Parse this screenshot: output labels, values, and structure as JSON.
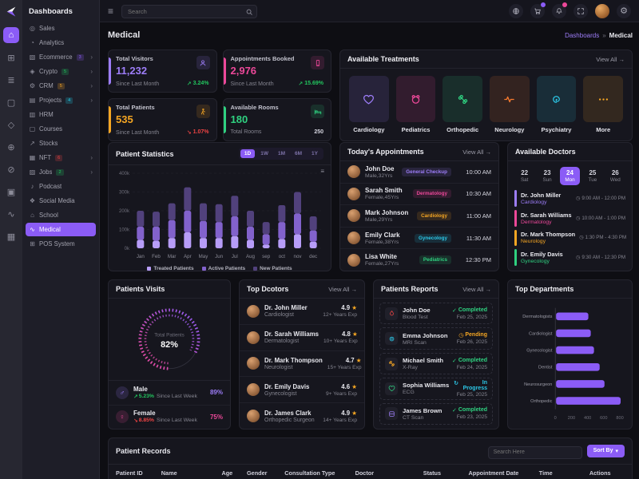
{
  "sidebar": {
    "title": "Dashboards",
    "items": [
      {
        "label": "Sales",
        "icon": "sales"
      },
      {
        "label": "Analytics",
        "icon": "analytics"
      },
      {
        "label": "Ecommerce",
        "icon": "ecommerce",
        "badge": "3",
        "badge_color": "#8b5cf6",
        "arrow": true
      },
      {
        "label": "Crypto",
        "icon": "crypto",
        "badge": "5",
        "badge_color": "#22c55e",
        "arrow": true
      },
      {
        "label": "CRM",
        "icon": "crm",
        "badge": "5",
        "badge_color": "#f5a623",
        "arrow": true
      },
      {
        "label": "Projects",
        "icon": "projects",
        "badge": "4",
        "badge_color": "#22d3ee",
        "arrow": true
      },
      {
        "label": "HRM",
        "icon": "hrm"
      },
      {
        "label": "Courses",
        "icon": "courses"
      },
      {
        "label": "Stocks",
        "icon": "stocks"
      },
      {
        "label": "NFT",
        "icon": "nft",
        "badge": "6",
        "badge_color": "#ef4444",
        "arrow": true
      },
      {
        "label": "Jobs",
        "icon": "jobs",
        "badge": "2",
        "badge_color": "#22c55e",
        "arrow": true
      },
      {
        "label": "Podcast",
        "icon": "podcast"
      },
      {
        "label": "Social Media",
        "icon": "social"
      },
      {
        "label": "School",
        "icon": "school"
      },
      {
        "label": "Medical",
        "icon": "medical",
        "active": true
      },
      {
        "label": "POS System",
        "icon": "pos"
      }
    ]
  },
  "rail": {
    "items": [
      {
        "icon": "home",
        "active": true
      },
      {
        "icon": "grid"
      },
      {
        "icon": "layers"
      },
      {
        "icon": "file"
      },
      {
        "icon": "diamond"
      },
      {
        "icon": "globe"
      },
      {
        "icon": "ban"
      },
      {
        "icon": "frame"
      },
      {
        "icon": "chart"
      },
      {
        "icon": "table"
      }
    ]
  },
  "topbar": {
    "search_placeholder": "Search"
  },
  "header": {
    "title": "Medical",
    "breadcrumb_parent": "Dashboards",
    "separator": "»",
    "breadcrumb_current": "Medical"
  },
  "stats": [
    {
      "title": "Total Visitors",
      "value": "11,232",
      "sub": "Since Last Month",
      "trend": "3.24%",
      "trend_dir": "up",
      "color": "#9d7df8",
      "icon": "person"
    },
    {
      "title": "Appointments Booked",
      "value": "2,976",
      "sub": "Since Last Month",
      "trend": "15.69%",
      "trend_dir": "up",
      "color": "#ec4899",
      "icon": "phone"
    },
    {
      "title": "Total Patients",
      "value": "535",
      "sub": "Since Last Month",
      "trend": "1.07%",
      "trend_dir": "down",
      "color": "#f5a623",
      "icon": "walk"
    },
    {
      "title": "Available Rooms",
      "value": "180",
      "sub": "Total Rooms",
      "trend": "250",
      "trend_dir": "none",
      "color": "#2fd180",
      "icon": "bed"
    }
  ],
  "treatments": {
    "title": "Available Treatments",
    "view_all": "View All →",
    "items": [
      {
        "label": "Cardiology",
        "color": "#9d7df8",
        "icon": "heart"
      },
      {
        "label": "Pediatrics",
        "color": "#ec4899",
        "icon": "teddy"
      },
      {
        "label": "Orthopedic",
        "color": "#2fd180",
        "icon": "bone"
      },
      {
        "label": "Neurology",
        "color": "#f97b2f",
        "icon": "pulse"
      },
      {
        "label": "Psychiatry",
        "color": "#2cc8e8",
        "icon": "spiral"
      },
      {
        "label": "More",
        "color": "#f5a623",
        "icon": "dots"
      }
    ]
  },
  "patient_statistics": {
    "title": "Patient Statistics",
    "ranges": [
      "1D",
      "1W",
      "1M",
      "6M",
      "1Y"
    ],
    "active_range": "1D"
  },
  "appointments": {
    "title": "Today's Appointments",
    "view_all": "View All →",
    "items": [
      {
        "name": "John Doe",
        "meta": "Male,32Yrs",
        "badge": "General Checkup",
        "badge_color": "#9d7df8",
        "time": "10:00 AM"
      },
      {
        "name": "Sarah Smith",
        "meta": "Female,45Yrs",
        "badge": "Dermatology",
        "badge_color": "#ec4899",
        "time": "10:30 AM"
      },
      {
        "name": "Mark Johnson",
        "meta": "Male,29Yrs",
        "badge": "Cardiology",
        "badge_color": "#f5a623",
        "time": "11:00 AM"
      },
      {
        "name": "Emily Clark",
        "meta": "Female,38Yrs",
        "badge": "Gynecology",
        "badge_color": "#2cc8e8",
        "time": "11:30 AM"
      },
      {
        "name": "Lisa White",
        "meta": "Female,27Yrs",
        "badge": "Pediatrics",
        "badge_color": "#2fd180",
        "time": "12:30 PM"
      }
    ]
  },
  "available_doctors": {
    "title": "Available Doctors",
    "days": [
      {
        "num": "22",
        "label": "Sat"
      },
      {
        "num": "23",
        "label": "Sun"
      },
      {
        "num": "24",
        "label": "Mon",
        "active": true
      },
      {
        "num": "25",
        "label": "Tue"
      },
      {
        "num": "26",
        "label": "Wed"
      }
    ],
    "doctors": [
      {
        "name": "Dr. John Miller",
        "dept": "Cardiology",
        "time": "9:00 AM - 12:00 PM",
        "color": "#9d7df8"
      },
      {
        "name": "Dr. Sarah Williams",
        "dept": "Dermatology",
        "time": "10:00 AM - 1:00 PM",
        "color": "#ec4899"
      },
      {
        "name": "Dr. Mark Thompson",
        "dept": "Neurology",
        "time": "1:30 PM - 4:30 PM",
        "color": "#f5a623"
      },
      {
        "name": "Dr. Emily Davis",
        "dept": "Gynecology",
        "time": "9:30 AM - 12:30 PM",
        "color": "#2fd180"
      }
    ]
  },
  "patients_visits": {
    "title": "Patients Visits",
    "gauge_label": "Total Patients",
    "gauge_value": "82%",
    "rows": [
      {
        "label": "Male",
        "trend": "5.23%",
        "trend_dir": "up",
        "sub": "Since Last Week",
        "pct": "89%",
        "color": "#9d7df8",
        "icon": "male"
      },
      {
        "label": "Female",
        "trend": "8.85%",
        "trend_dir": "down",
        "sub": "Since Last Week",
        "pct": "75%",
        "color": "#ec4899",
        "icon": "female"
      }
    ]
  },
  "top_doctors": {
    "title": "Top Dcotors",
    "view_all": "View All →",
    "items": [
      {
        "name": "Dr. John Miller",
        "spec": "Cardiologist",
        "rating": "4.9",
        "exp": "12+ Years Exp"
      },
      {
        "name": "Dr. Sarah Williams",
        "spec": "Dermatologist",
        "rating": "4.8",
        "exp": "10+ Years Exp"
      },
      {
        "name": "Dr. Mark Thompson",
        "spec": "Neurologist",
        "rating": "4.7",
        "exp": "15+ Years Exp"
      },
      {
        "name": "Dr. Emily Davis",
        "spec": "Gynecologist",
        "rating": "4.6",
        "exp": "9+ Years Exp"
      },
      {
        "name": "Dr. James Clark",
        "spec": "Orthopedic Surgeon",
        "rating": "4.9",
        "exp": "14+ Years Exp"
      }
    ]
  },
  "patients_reports": {
    "title": "Patients Reports",
    "view_all": "View All →",
    "items": [
      {
        "name": "John Doe",
        "test": "Blood Test",
        "status": "Completed",
        "date": "Feb 25, 2025",
        "status_color": "#2fd180",
        "icon_color": "#ef4444",
        "icon": "drop"
      },
      {
        "name": "Emma Johnson",
        "test": "MRI Scan",
        "status": "Pending",
        "date": "Feb 26, 2025",
        "status_color": "#f5a623",
        "icon_color": "#2cc8e8",
        "icon": "brain"
      },
      {
        "name": "Michael Smith",
        "test": "X-Ray",
        "status": "Completed",
        "date": "Feb 24, 2025",
        "status_color": "#2fd180",
        "icon_color": "#f5a623",
        "icon": "bone"
      },
      {
        "name": "Sophia Williams",
        "test": "ECG",
        "status": "In Progress",
        "date": "Feb 25, 2025",
        "status_color": "#2cc8e8",
        "icon_color": "#2fd180",
        "icon": "heart"
      },
      {
        "name": "James Brown",
        "test": "CT Scan",
        "status": "Completed",
        "date": "Feb 23, 2025",
        "status_color": "#2fd180",
        "icon_color": "#9d7df8",
        "icon": "scan"
      }
    ]
  },
  "top_departments": {
    "title": "Top Departments"
  },
  "patient_records": {
    "title": "Patient Records",
    "search_placeholder": "Search Here",
    "sort_label": "Sort By",
    "columns": [
      "Patient ID",
      "Name",
      "Age",
      "Gender",
      "Consultation Type",
      "Doctor",
      "Status",
      "Appointment Date",
      "Time",
      "Actions"
    ]
  },
  "chart_data": [
    {
      "id": "patient_statistics",
      "type": "bar",
      "stacked": true,
      "categories": [
        "Jan",
        "Feb",
        "Mar",
        "Apr",
        "May",
        "Jun",
        "Jul",
        "Aug",
        "sep",
        "oct",
        "nov",
        "dec"
      ],
      "series": [
        {
          "name": "Treated Patients",
          "color": "#b79df8",
          "values": [
            45,
            40,
            55,
            85,
            55,
            55,
            65,
            45,
            20,
            50,
            75,
            35
          ]
        },
        {
          "name": "Active Patients",
          "color": "#8262cc",
          "values": [
            70,
            75,
            95,
            115,
            90,
            85,
            105,
            70,
            55,
            90,
            110,
            60
          ]
        },
        {
          "name": "New Patients",
          "color": "#51417c",
          "values": [
            85,
            80,
            90,
            125,
            95,
            95,
            110,
            85,
            65,
            90,
            115,
            75
          ]
        }
      ],
      "unit": "k",
      "ylim": [
        0,
        400
      ],
      "yticks": [
        0,
        100,
        200,
        300,
        400
      ],
      "legend_position": "bottom",
      "grid": true
    },
    {
      "id": "patients_visits_gauge",
      "type": "gauge",
      "label": "Total Patients",
      "value": 82,
      "display": "82%",
      "colors": [
        "#8b5cf6",
        "#ec4899"
      ]
    },
    {
      "id": "top_departments",
      "type": "bar",
      "orientation": "horizontal",
      "categories": [
        "Dermatologists",
        "Cardiologist",
        "Gynecologist",
        "Dentist",
        "Neurosurgeon",
        "Orthopedic"
      ],
      "values": [
        400,
        430,
        470,
        540,
        600,
        800
      ],
      "color": "#8b5cf6",
      "xlim": [
        0,
        800
      ],
      "xticks": [
        0,
        200,
        400,
        600,
        800
      ],
      "grid": false
    }
  ]
}
